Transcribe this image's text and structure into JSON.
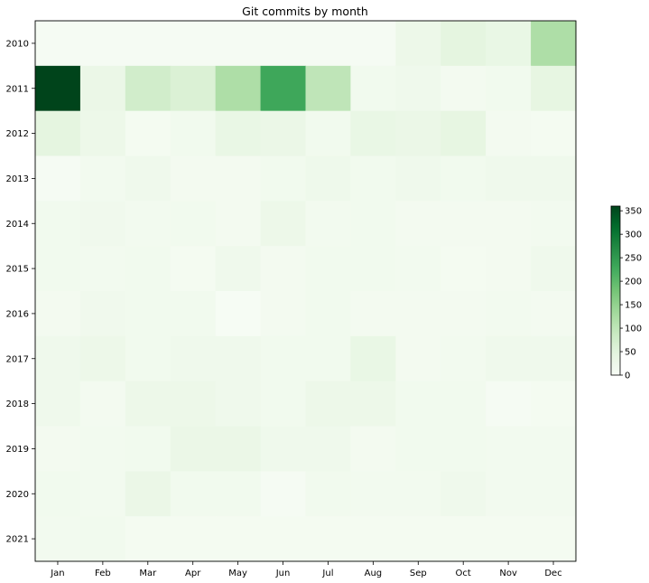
{
  "chart_data": {
    "type": "heatmap",
    "title": "Git commits by month",
    "x_categories": [
      "Jan",
      "Feb",
      "Mar",
      "Apr",
      "May",
      "Jun",
      "Jul",
      "Aug",
      "Sep",
      "Oct",
      "Nov",
      "Dec"
    ],
    "y_categories": [
      "2010",
      "2011",
      "2012",
      "2013",
      "2014",
      "2015",
      "2016",
      "2017",
      "2018",
      "2019",
      "2020",
      "2021"
    ],
    "values": [
      [
        5,
        5,
        5,
        5,
        5,
        5,
        5,
        5,
        25,
        45,
        35,
        120
      ],
      [
        360,
        30,
        75,
        60,
        120,
        230,
        100,
        15,
        20,
        10,
        15,
        40
      ],
      [
        45,
        25,
        8,
        15,
        35,
        30,
        15,
        35,
        30,
        40,
        10,
        8
      ],
      [
        5,
        12,
        20,
        10,
        10,
        15,
        22,
        15,
        20,
        15,
        20,
        20
      ],
      [
        15,
        18,
        12,
        15,
        10,
        25,
        12,
        15,
        10,
        10,
        10,
        12
      ],
      [
        15,
        12,
        15,
        8,
        20,
        10,
        15,
        15,
        12,
        8,
        10,
        20
      ],
      [
        10,
        18,
        15,
        15,
        3,
        10,
        15,
        10,
        10,
        10,
        12,
        10
      ],
      [
        20,
        25,
        15,
        20,
        20,
        15,
        15,
        35,
        10,
        12,
        20,
        20
      ],
      [
        20,
        10,
        25,
        25,
        20,
        15,
        25,
        25,
        15,
        15,
        5,
        8
      ],
      [
        10,
        12,
        15,
        30,
        30,
        20,
        20,
        10,
        15,
        15,
        12,
        12
      ],
      [
        15,
        12,
        30,
        15,
        15,
        5,
        15,
        12,
        12,
        20,
        12,
        12
      ],
      [
        12,
        15,
        8,
        8,
        8,
        8,
        8,
        8,
        8,
        8,
        8,
        8
      ]
    ],
    "colormap": "Greens",
    "colorbar": {
      "min": 0,
      "max": 360,
      "ticks": [
        0,
        50,
        100,
        150,
        200,
        250,
        300,
        350
      ]
    },
    "xlabel": "",
    "ylabel": ""
  }
}
